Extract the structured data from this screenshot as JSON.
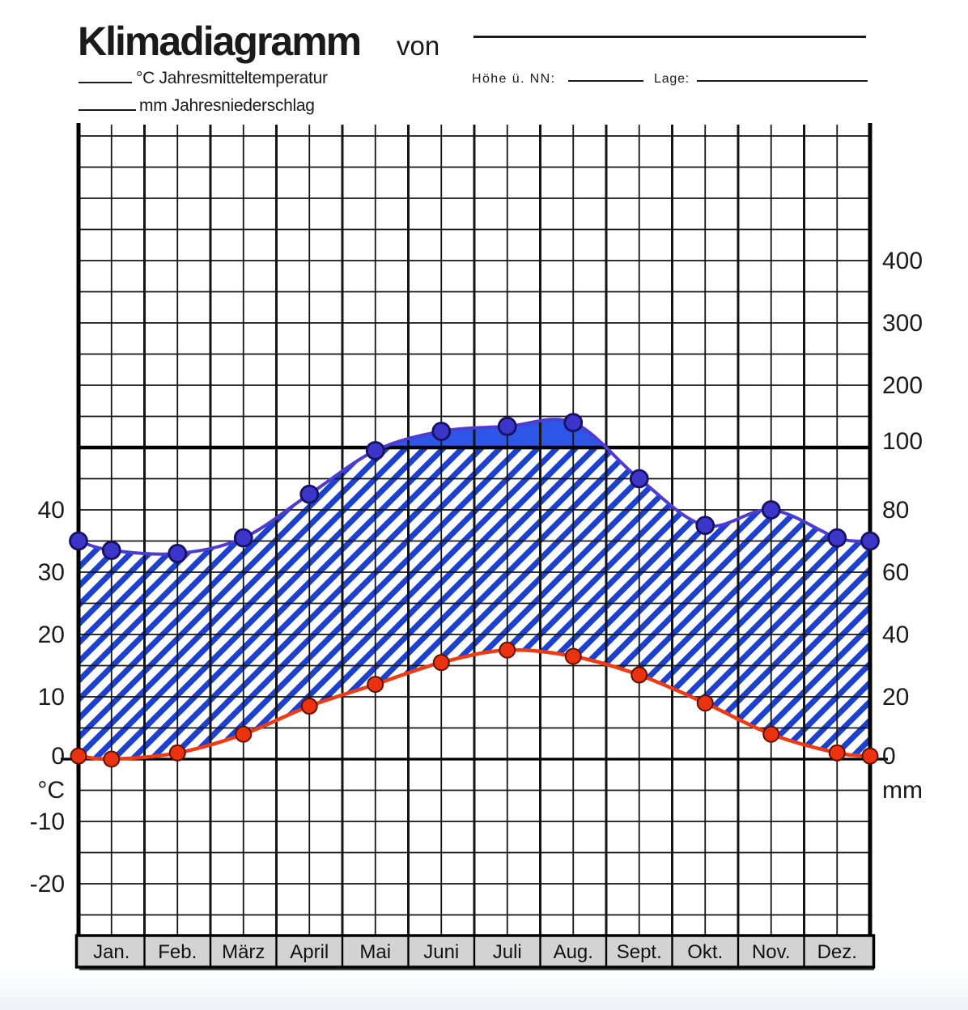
{
  "header": {
    "title": "Klimadiagramm",
    "title_suffix": "von",
    "temp_blank_label": "°C Jahresmitteltemperatur",
    "precip_blank_label": "mm Jahresniederschlag",
    "altitude_label": "Höhe ü. NN:",
    "location_label": "Lage:"
  },
  "axes": {
    "left_unit": "°C",
    "right_unit": "mm",
    "left_ticks": [
      40,
      30,
      20,
      10,
      0,
      -10,
      -20
    ],
    "right_ticks": [
      400,
      300,
      200,
      100,
      80,
      60,
      40,
      20,
      0
    ]
  },
  "months": [
    "Jan.",
    "Feb.",
    "März",
    "April",
    "Mai",
    "Juni",
    "Juli",
    "Aug.",
    "Sept.",
    "Okt.",
    "Nov.",
    "Dez."
  ],
  "chart_data": {
    "type": "line",
    "title": "Klimadiagramm (Walter-Lieth Klimadiagramm, ausgefülltes Beispiel ohne Stationsname)",
    "categories": [
      "Jan.",
      "Feb.",
      "März",
      "April",
      "Mai",
      "Juni",
      "Juli",
      "Aug.",
      "Sept.",
      "Okt.",
      "Nov.",
      "Dez."
    ],
    "series": [
      {
        "name": "Niederschlag",
        "unit": "mm",
        "values": [
          67,
          66,
          71,
          85,
          99,
          126,
          134,
          140,
          90,
          75,
          80,
          71
        ],
        "edge_start": 70,
        "edge_end": 70
      },
      {
        "name": "Temperatur",
        "unit": "°C",
        "values": [
          0,
          1,
          4,
          8.5,
          12,
          15.5,
          17.5,
          16.5,
          13.5,
          9,
          4,
          1
        ],
        "edge_start": 0.5,
        "edge_end": 0.5
      }
    ],
    "y_left_axis": {
      "unit": "°C",
      "ticks": [
        40,
        30,
        20,
        10,
        0,
        -10,
        -20
      ]
    },
    "y_right_axis": {
      "unit": "mm",
      "ticks": [
        400,
        300,
        200,
        100,
        80,
        60,
        40,
        20,
        0
      ],
      "scale_note": "20 mm je 10 °C unter 100 mm, 100 mm je 10 °C über 100 mm"
    },
    "area_styles": {
      "humid": "blaue Schraffur zwischen Temperatur- und Niederschlagskurve",
      "overflow_above_100mm": "vollflächig blau"
    },
    "grid": true,
    "legend": false
  },
  "colors": {
    "precip_line": "#4e3cd2",
    "precip_point": "#3b36c9",
    "precip_point_outline": "#181060",
    "temp_line": "#f23a12",
    "temp_point": "#ea3110",
    "temp_point_outline": "#601000",
    "hatch_blue": "#1c40d0",
    "overflow_blue": "#2d55e8",
    "grid_black": "#141414",
    "month_band_gray": "#d3d3d3",
    "text": "#1a1a1a"
  }
}
